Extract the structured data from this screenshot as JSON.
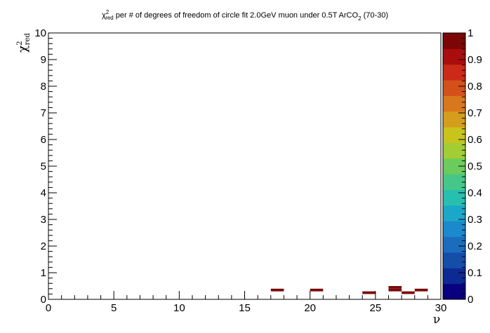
{
  "chart_data": {
    "type": "heatmap",
    "title": "χ²_red per # of degrees of freedom of circle fit 2.0GeV muon under 0.5T ArCO₂ (70-30)",
    "title_parts": {
      "chi": "χ",
      "sup": "2",
      "sub": "red",
      "middle": " per # of degrees of freedom of circle fit 2.0GeV muon under 0.5T ArCO",
      "co2_sub": "2",
      "tail": " (70-30)"
    },
    "xlabel": "ν",
    "ylabel": {
      "base": "χ",
      "sup": "2",
      "sub": "red"
    },
    "xlim": [
      0,
      30
    ],
    "ylim": [
      0,
      10
    ],
    "x_bin_width": 1,
    "y_bin_width": 0.1,
    "x_major_ticks": [
      0,
      5,
      10,
      15,
      20,
      25,
      30
    ],
    "y_major_ticks": [
      0,
      1,
      2,
      3,
      4,
      5,
      6,
      7,
      8,
      9,
      10
    ],
    "color_scale": {
      "min": 0,
      "max": 1,
      "ticks": [
        0,
        0.1,
        0.2,
        0.3,
        0.4,
        0.5,
        0.6,
        0.7,
        0.8,
        0.9,
        1
      ],
      "tick_labels": [
        "0",
        "0.1",
        "0.2",
        "0.3",
        "0.4",
        "0.5",
        "0.6",
        "0.7",
        "0.8",
        "0.9",
        "1"
      ],
      "palette": [
        "#08007e",
        "#0d2a94",
        "#154ea8",
        "#1b6cbd",
        "#1b89ce",
        "#1ba8c8",
        "#27c0b0",
        "#45c789",
        "#6ccb5d",
        "#a2cd33",
        "#c8c41b",
        "#d49d1c",
        "#d8781c",
        "#d4501b",
        "#cc2a18",
        "#a90d0d",
        "#7a0606"
      ]
    },
    "cells": [
      {
        "x": 17.5,
        "y": 0.35,
        "value": 1
      },
      {
        "x": 20.5,
        "y": 0.35,
        "value": 1
      },
      {
        "x": 24.5,
        "y": 0.25,
        "value": 1
      },
      {
        "x": 26.5,
        "y": 0.45,
        "value": 1
      },
      {
        "x": 26.5,
        "y": 0.35,
        "value": 1
      },
      {
        "x": 27.5,
        "y": 0.25,
        "value": 1
      },
      {
        "x": 28.5,
        "y": 0.35,
        "value": 1
      }
    ],
    "cell_color": "#7a0a0a",
    "legend": "color bar on right",
    "grid": false
  }
}
